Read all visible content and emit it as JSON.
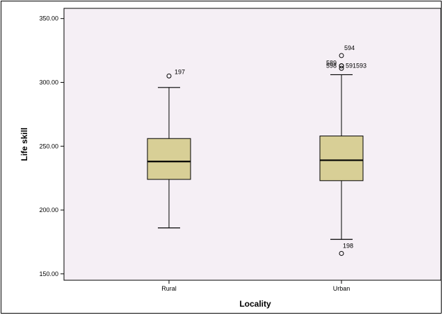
{
  "chart_data": {
    "type": "box",
    "xlabel": "Locality",
    "ylabel": "Life skill",
    "ylim": [
      145,
      358
    ],
    "y_ticks": [
      "150.00",
      "200.00",
      "250.00",
      "300.00",
      "350.00"
    ],
    "y_tick_values": [
      150,
      200,
      250,
      300,
      350
    ],
    "grid": false,
    "colors": {
      "plot_background": "#F5EFF5",
      "box_fill": "#D8CF96",
      "line": "#000000"
    },
    "categories": [
      "Rural",
      "Urban"
    ],
    "boxes": [
      {
        "category": "Rural",
        "whisker_low": 186,
        "q1": 224,
        "median": 238,
        "q3": 256,
        "whisker_high": 296,
        "outliers": [
          {
            "value": 305,
            "label": "197"
          }
        ]
      },
      {
        "category": "Urban",
        "whisker_low": 177,
        "q1": 223,
        "median": 239,
        "q3": 258,
        "whisker_high": 306,
        "outliers": [
          {
            "value": 166,
            "label": "198"
          },
          {
            "value": 311,
            "label": "598"
          },
          {
            "value": 313,
            "label": "589"
          },
          {
            "value": 313,
            "label": "591593"
          },
          {
            "value": 321,
            "label": "594"
          }
        ]
      }
    ]
  }
}
